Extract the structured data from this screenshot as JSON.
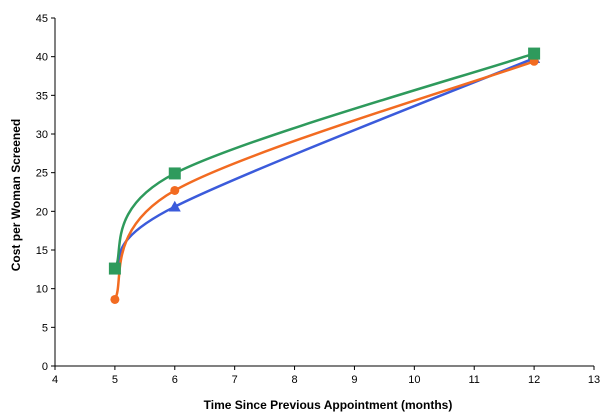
{
  "chart_data": {
    "type": "line",
    "title": "",
    "xlabel": "Time Since Previous Appointment (months)",
    "ylabel": "Cost per Woman Screened",
    "xlim": [
      4,
      13
    ],
    "ylim": [
      0,
      45
    ],
    "xticks": [
      4,
      5,
      6,
      7,
      8,
      9,
      10,
      11,
      12,
      13
    ],
    "yticks": [
      0,
      5,
      10,
      15,
      20,
      25,
      30,
      35,
      40,
      45
    ],
    "grid": false,
    "legend": "none",
    "smooth": true,
    "series": [
      {
        "color": "#3b5bdb",
        "marker": "triangle",
        "x": [
          5,
          6,
          12
        ],
        "y": [
          12.5,
          20.6,
          39.8
        ]
      },
      {
        "color": "#f26b21",
        "marker": "circle",
        "x": [
          5,
          6,
          12
        ],
        "y": [
          8.6,
          22.7,
          39.4
        ]
      },
      {
        "color": "#2e9a5c",
        "marker": "square",
        "x": [
          5,
          6,
          12
        ],
        "y": [
          12.6,
          24.9,
          40.4
        ]
      }
    ]
  }
}
